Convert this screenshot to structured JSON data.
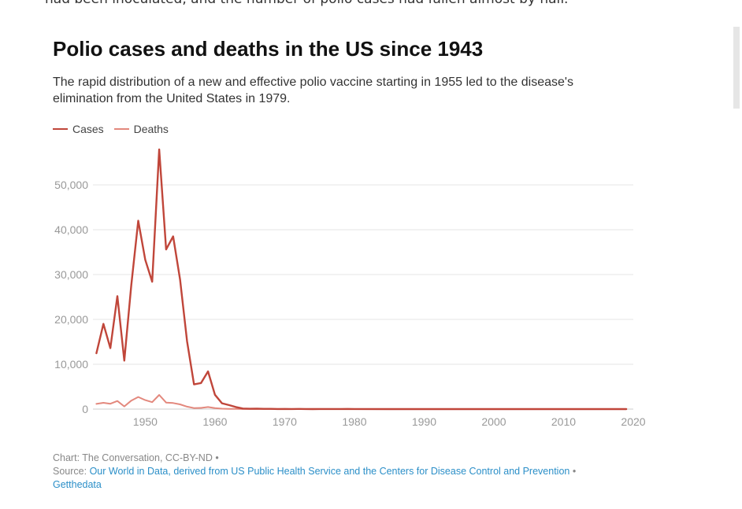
{
  "article": {
    "snippet": "had been inoculated, and the number of polio cases had fallen almost by half."
  },
  "chart": {
    "title": "Polio cases and deaths in the US since 1943",
    "subtitle": "The rapid distribution of a new and effective polio vaccine starting in 1955 led to the disease's elimination from the United States in 1979."
  },
  "legend": {
    "cases": "Cases",
    "deaths": "Deaths"
  },
  "footer": {
    "credit": "Chart: The Conversation, CC-BY-ND",
    "bullet": "•",
    "source_label": "Source:",
    "source_link": "Our World in Data, derived from US Public Health Service and the Centers for Disease Control and Prevention",
    "data_link": "Getthedata"
  },
  "colors": {
    "cases": "#c0463a",
    "deaths": "#e3887d",
    "grid": "#e6e6e6",
    "tick": "#999999",
    "link": "#2b8fc8"
  },
  "chart_data": {
    "type": "line",
    "title": "Polio cases and deaths in the US since 1943",
    "subtitle": "The rapid distribution of a new and effective polio vaccine starting in 1955 led to the disease's elimination from the United States in 1979.",
    "xlabel": "",
    "ylabel": "",
    "xlim": [
      1942.5,
      2020
    ],
    "ylim": [
      0,
      60000
    ],
    "x_ticks": [
      1950,
      1960,
      1970,
      1980,
      1990,
      2000,
      2010,
      2020
    ],
    "y_ticks": [
      0,
      10000,
      20000,
      30000,
      40000,
      50000
    ],
    "y_tick_labels": [
      "0",
      "10,000",
      "20,000",
      "30,000",
      "40,000",
      "50,000"
    ],
    "grid": true,
    "legend_position": "top-left",
    "series": [
      {
        "name": "Cases",
        "x": [
          1943,
          1944,
          1945,
          1946,
          1947,
          1948,
          1949,
          1950,
          1951,
          1952,
          1953,
          1954,
          1955,
          1956,
          1957,
          1958,
          1959,
          1960,
          1961,
          1962,
          1963,
          1964,
          1965,
          1966,
          1967,
          1968,
          1969,
          1970,
          1971,
          1972,
          1973,
          1974,
          1975,
          1976,
          1977,
          1978,
          1979,
          1980,
          1985,
          1990,
          1995,
          2000,
          2005,
          2010,
          2015,
          2019
        ],
        "y": [
          12450,
          19000,
          13600,
          25200,
          10800,
          27700,
          42000,
          33300,
          28400,
          57900,
          35600,
          38500,
          28900,
          15100,
          5500,
          5800,
          8400,
          3200,
          1300,
          900,
          450,
          120,
          70,
          110,
          60,
          60,
          20,
          40,
          20,
          30,
          10,
          8,
          13,
          10,
          18,
          10,
          30,
          10,
          8,
          6,
          7,
          3,
          1,
          0,
          0,
          0
        ]
      },
      {
        "name": "Deaths",
        "x": [
          1943,
          1944,
          1945,
          1946,
          1947,
          1948,
          1949,
          1950,
          1951,
          1952,
          1953,
          1954,
          1955,
          1956,
          1957,
          1958,
          1959,
          1960,
          1961,
          1962,
          1963,
          1964,
          1965,
          1966,
          1967,
          1968,
          1969,
          1970,
          1975,
          1980,
          1990,
          2000,
          2010,
          2019
        ],
        "y": [
          1150,
          1400,
          1200,
          1800,
          600,
          1900,
          2700,
          2000,
          1550,
          3150,
          1450,
          1350,
          1050,
          550,
          220,
          255,
          450,
          230,
          90,
          60,
          40,
          20,
          16,
          9,
          16,
          24,
          13,
          7,
          9,
          2,
          0,
          0,
          0,
          0
        ]
      }
    ]
  }
}
